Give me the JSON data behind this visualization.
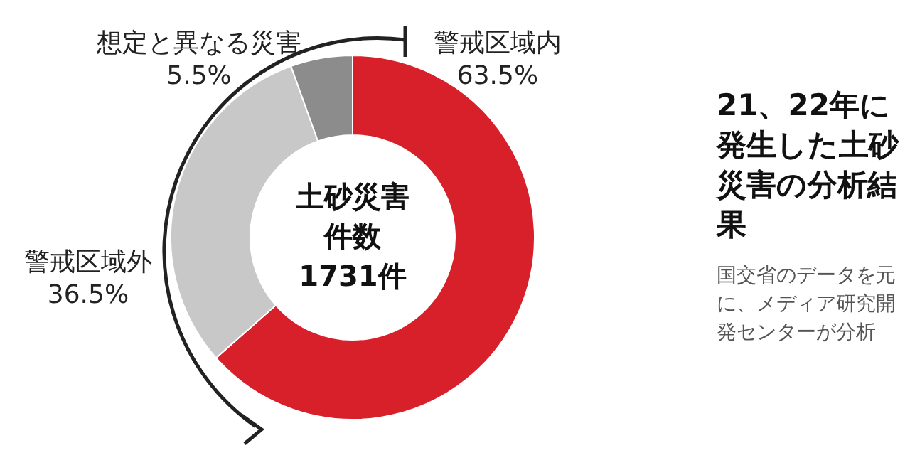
{
  "chart_data": {
    "type": "donut",
    "title": "21、22年に発生した土砂災害の分析結果",
    "categories": [
      "警戒区域内",
      "警戒区域外",
      "想定と異なる災害"
    ],
    "values": [
      63.5,
      31.0,
      5.5
    ],
    "value_labels": [
      "63.5%",
      null,
      "5.5%"
    ],
    "colors": [
      "#d7202a",
      "#c8c8c8",
      "#8c8c8c"
    ],
    "annotations": [
      "国交省のデータを元に、メディア研究開発センターが分析",
      "36.5%",
      "土砂災害",
      "件数",
      "1731件"
    ]
  }
}
